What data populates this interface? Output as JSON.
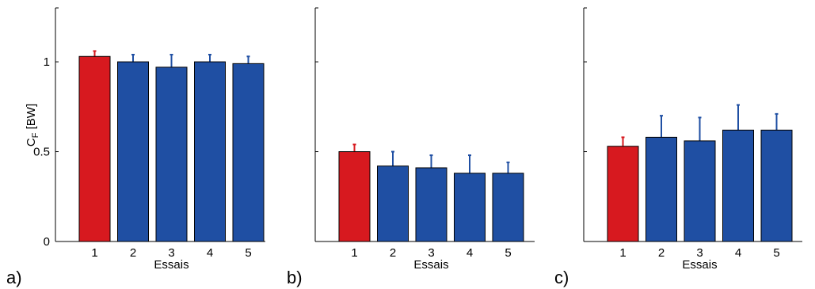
{
  "chart_data": [
    {
      "type": "bar",
      "panel_label": "a)",
      "categories": [
        "1",
        "2",
        "3",
        "4",
        "5"
      ],
      "values": [
        1.03,
        1.0,
        0.97,
        1.0,
        0.99
      ],
      "errors": [
        0.03,
        0.04,
        0.07,
        0.04,
        0.04
      ],
      "xlabel": "Essais",
      "ylabel": "C",
      "ylabel_sub": "F",
      "ylabel_unit": "[BW]",
      "ylim": [
        0,
        1.3
      ],
      "yticks": [
        0,
        0.5,
        1
      ],
      "ytick_labels": [
        "0",
        "0.5",
        "1"
      ],
      "show_ytick_labels": true,
      "grid": false
    },
    {
      "type": "bar",
      "panel_label": "b)",
      "categories": [
        "1",
        "2",
        "3",
        "4",
        "5"
      ],
      "values": [
        0.5,
        0.42,
        0.41,
        0.38,
        0.38
      ],
      "errors": [
        0.04,
        0.08,
        0.07,
        0.1,
        0.06
      ],
      "xlabel": "Essais",
      "ylim": [
        0,
        1.3
      ],
      "yticks": [
        0,
        0.5,
        1
      ],
      "show_ytick_labels": false,
      "grid": false
    },
    {
      "type": "bar",
      "panel_label": "c)",
      "categories": [
        "1",
        "2",
        "3",
        "4",
        "5"
      ],
      "values": [
        0.53,
        0.58,
        0.56,
        0.62,
        0.62
      ],
      "errors": [
        0.05,
        0.12,
        0.13,
        0.14,
        0.09
      ],
      "xlabel": "Essais",
      "ylim": [
        0,
        1.3
      ],
      "yticks": [
        0,
        0.5,
        1
      ],
      "show_ytick_labels": false,
      "grid": false
    }
  ],
  "colors": {
    "first_bar": "#d7191f",
    "other_bars": "#1f4fa3",
    "error_first": "#d7191f",
    "error_other": "#1f4fa3",
    "axis": "#000000"
  }
}
